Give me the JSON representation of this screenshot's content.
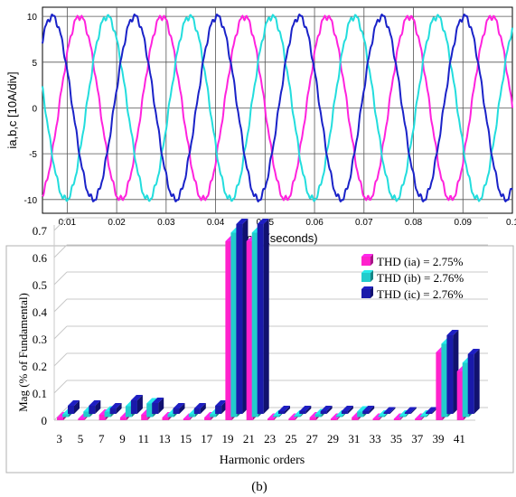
{
  "chart_data": [
    {
      "type": "line",
      "xlabel": "Time (seconds)",
      "ylabel": "ia,b,c [10A/div]",
      "xlim": [
        0.005,
        0.1
      ],
      "ylim": [
        -11.5,
        11
      ],
      "x_ticks": [
        "0.01",
        "0.02",
        "0.03",
        "0.04",
        "0.05",
        "0.06",
        "0.07",
        "0.08",
        "0.09",
        "0.1"
      ],
      "x_tick_values": [
        0.01,
        0.02,
        0.03,
        0.04,
        0.05,
        0.06,
        0.07,
        0.08,
        0.09,
        0.1
      ],
      "y_ticks": [
        "10",
        "5",
        "0",
        "-5",
        "-10"
      ],
      "y_tick_values": [
        10,
        5,
        0,
        -5,
        -10
      ],
      "grid": true,
      "waveform": {
        "frequency_hz": 60,
        "amplitude": 10,
        "ripple": 0.25
      },
      "series": [
        {
          "color": "#ff22dd",
          "phase_deg": 180,
          "start_value": -0.4
        },
        {
          "color": "#22dddd",
          "phase_deg": 60,
          "start_value": -8.5
        },
        {
          "color": "#1a22c8",
          "phase_deg": -60,
          "start_value": 8.5
        }
      ]
    },
    {
      "type": "bar",
      "subtype": "3d-grouped",
      "xlabel": "Harmonic orders",
      "ylabel": "Mag (% of Fundamental)",
      "ylim": [
        0,
        0.75
      ],
      "y_ticks": [
        "0",
        "0.1",
        "0.2",
        "0.3",
        "0.4",
        "0.5",
        "0.6",
        "0.7"
      ],
      "y_tick_values": [
        0,
        0.1,
        0.2,
        0.3,
        0.4,
        0.5,
        0.6,
        0.7
      ],
      "categories": [
        "3",
        "5",
        "7",
        "9",
        "11",
        "13",
        "15",
        "17",
        "19",
        "21",
        "23",
        "25",
        "27",
        "29",
        "31",
        "33",
        "35",
        "37",
        "39",
        "41"
      ],
      "legend_position": "top-right",
      "series": [
        {
          "name": "THD (ia) = 2.75%",
          "color": "#ff22cc",
          "values": [
            0.01,
            0.005,
            0.02,
            0.01,
            0.02,
            0.01,
            0.005,
            0.01,
            0.66,
            0.66,
            0.005,
            0.005,
            0.01,
            0.005,
            0.01,
            0.005,
            0.005,
            0.005,
            0.25,
            0.18
          ]
        },
        {
          "name": "THD (ib) = 2.76%",
          "color": "#22cccc",
          "values": [
            0.01,
            0.02,
            0.02,
            0.04,
            0.05,
            0.01,
            0.01,
            0.01,
            0.68,
            0.68,
            0.005,
            0.005,
            0.01,
            0.005,
            0.02,
            0.005,
            0.005,
            0.005,
            0.27,
            0.2
          ]
        },
        {
          "name": "THD (ic) = 2.76%",
          "color": "#1a1aaa",
          "values": [
            0.03,
            0.03,
            0.02,
            0.05,
            0.04,
            0.02,
            0.02,
            0.03,
            0.7,
            0.7,
            0.01,
            0.01,
            0.01,
            0.01,
            0.01,
            0.005,
            0.005,
            0.005,
            0.29,
            0.22
          ]
        }
      ]
    }
  ],
  "caption": "(b)"
}
